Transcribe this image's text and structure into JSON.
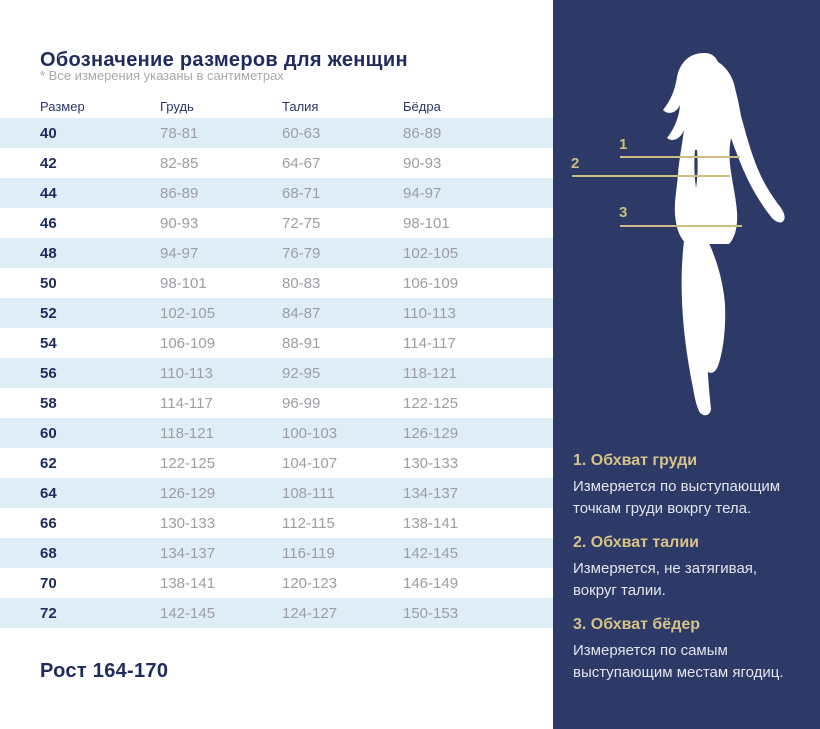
{
  "page": {
    "title": "Обозначение размеров для женщин",
    "subtitle": "* Все измерения указаны в сантиметрах",
    "height_note": "Рост 164-170"
  },
  "table": {
    "headers": [
      "Размер",
      "Грудь",
      "Талия",
      "Бёдра"
    ],
    "rows": [
      [
        "40",
        "78-81",
        "60-63",
        "86-89"
      ],
      [
        "42",
        "82-85",
        "64-67",
        "90-93"
      ],
      [
        "44",
        "86-89",
        "68-71",
        "94-97"
      ],
      [
        "46",
        "90-93",
        "72-75",
        "98-101"
      ],
      [
        "48",
        "94-97",
        "76-79",
        "102-105"
      ],
      [
        "50",
        "98-101",
        "80-83",
        "106-109"
      ],
      [
        "52",
        "102-105",
        "84-87",
        "110-113"
      ],
      [
        "54",
        "106-109",
        "88-91",
        "114-117"
      ],
      [
        "56",
        "110-113",
        "92-95",
        "118-121"
      ],
      [
        "58",
        "114-117",
        "96-99",
        "122-125"
      ],
      [
        "60",
        "118-121",
        "100-103",
        "126-129"
      ],
      [
        "62",
        "122-125",
        "104-107",
        "130-133"
      ],
      [
        "64",
        "126-129",
        "108-111",
        "134-137"
      ],
      [
        "66",
        "130-133",
        "112-115",
        "138-141"
      ],
      [
        "68",
        "134-137",
        "116-119",
        "142-145"
      ],
      [
        "70",
        "138-141",
        "120-123",
        "146-149"
      ],
      [
        "72",
        "142-145",
        "124-127",
        "150-153"
      ]
    ]
  },
  "panel": {
    "figure": "woman-silhouette",
    "markers": [
      {
        "label": "1"
      },
      {
        "label": "2"
      },
      {
        "label": "3"
      }
    ],
    "notes": [
      {
        "heading": "1. Обхват груди",
        "body": "Измеряется по  выступающим\nточкам груди вокргу тела."
      },
      {
        "heading": "2. Обхват талии",
        "body": "Измеряется, не затягивая,\nвокруг талии."
      },
      {
        "heading": "3. Обхват бёдер",
        "body": "Измеряется по самым\nвыступающим местам ягодиц."
      }
    ]
  },
  "colors": {
    "navy_text": "#1f2b5c",
    "panel_bg": "#2d3966",
    "gold": "#cbbd84",
    "gold_heading": "#d5c389",
    "row_alt": "#dfeef6",
    "value_gray": "#9c9ea3",
    "panel_body_text": "#e2e5ee"
  }
}
